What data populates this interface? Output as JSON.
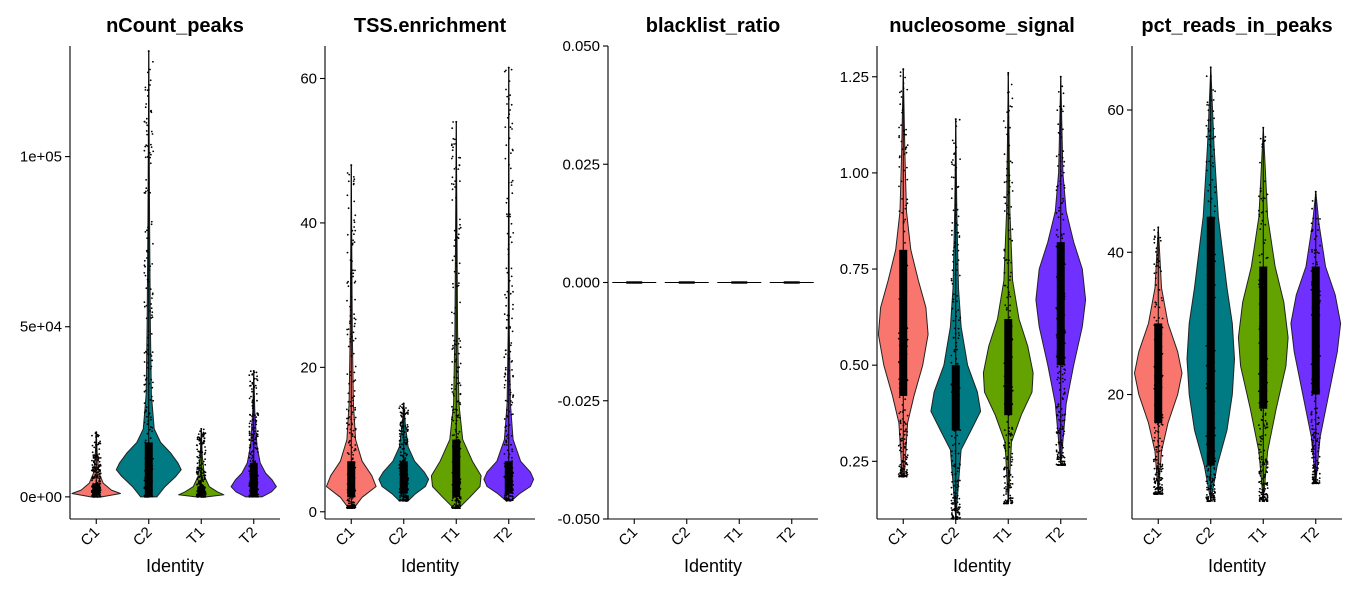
{
  "chart_data": [
    {
      "type": "violin",
      "title": "nCount_peaks",
      "xlabel": "Identity",
      "ylabel": "",
      "ylim": [
        -6500,
        132500
      ],
      "ticks": [
        {
          "value": 0,
          "label": "0e+00"
        },
        {
          "value": 50000,
          "label": "5e+04"
        },
        {
          "value": 100000,
          "label": "1e+05"
        }
      ],
      "categories": [
        "C1",
        "C2",
        "T1",
        "T2"
      ],
      "series": [
        {
          "category": "C1",
          "color": "#F8766D",
          "min": 0,
          "max": 19000,
          "profile": [
            [
              0,
              0.1
            ],
            [
              1000,
              0.45
            ],
            [
              2000,
              0.28
            ],
            [
              4000,
              0.13
            ],
            [
              7000,
              0.05
            ],
            [
              12000,
              0.02
            ],
            [
              19000,
              0
            ]
          ]
        },
        {
          "category": "C2",
          "color": "#007A83",
          "min": 0,
          "max": 131000,
          "profile": [
            [
              0,
              0.15
            ],
            [
              3000,
              0.3
            ],
            [
              6000,
              0.5
            ],
            [
              8000,
              0.6
            ],
            [
              10000,
              0.54
            ],
            [
              13000,
              0.4
            ],
            [
              16000,
              0.22
            ],
            [
              20000,
              0.1
            ],
            [
              30000,
              0.05
            ],
            [
              50000,
              0.03
            ],
            [
              80000,
              0.015
            ],
            [
              131000,
              0
            ]
          ]
        },
        {
          "category": "T1",
          "color": "#64A200",
          "min": 0,
          "max": 20000,
          "profile": [
            [
              0,
              0.1
            ],
            [
              600,
              0.42
            ],
            [
              1500,
              0.3
            ],
            [
              3000,
              0.15
            ],
            [
              6000,
              0.06
            ],
            [
              12000,
              0.02
            ],
            [
              20000,
              0
            ]
          ]
        },
        {
          "category": "T2",
          "color": "#7030FF",
          "min": 0,
          "max": 37000,
          "profile": [
            [
              0,
              0.15
            ],
            [
              1500,
              0.33
            ],
            [
              3000,
              0.42
            ],
            [
              5000,
              0.34
            ],
            [
              7000,
              0.22
            ],
            [
              10000,
              0.12
            ],
            [
              15000,
              0.06
            ],
            [
              25000,
              0.02
            ],
            [
              37000,
              0
            ]
          ]
        }
      ]
    },
    {
      "type": "violin",
      "title": "TSS.enrichment",
      "xlabel": "Identity",
      "ylabel": "",
      "ylim": [
        -1,
        64.5
      ],
      "ticks": [
        {
          "value": 0,
          "label": "0"
        },
        {
          "value": 20,
          "label": "20"
        },
        {
          "value": 40,
          "label": "40"
        },
        {
          "value": 60,
          "label": "60"
        }
      ],
      "categories": [
        "C1",
        "C2",
        "T1",
        "T2"
      ],
      "series": [
        {
          "category": "C1",
          "color": "#F8766D",
          "min": 0.5,
          "max": 48,
          "profile": [
            [
              0.5,
              0.05
            ],
            [
              2,
              0.2
            ],
            [
              3.5,
              0.46
            ],
            [
              5,
              0.38
            ],
            [
              7,
              0.2
            ],
            [
              10,
              0.08
            ],
            [
              15,
              0.04
            ],
            [
              25,
              0.02
            ],
            [
              48,
              0
            ]
          ]
        },
        {
          "category": "C2",
          "color": "#007A83",
          "min": 1.5,
          "max": 15,
          "profile": [
            [
              1.5,
              0.08
            ],
            [
              2.5,
              0.22
            ],
            [
              3.5,
              0.4
            ],
            [
              4.5,
              0.46
            ],
            [
              5.5,
              0.38
            ],
            [
              7,
              0.2
            ],
            [
              9,
              0.08
            ],
            [
              12,
              0.03
            ],
            [
              15,
              0
            ]
          ]
        },
        {
          "category": "T1",
          "color": "#64A200",
          "min": 0.5,
          "max": 54,
          "profile": [
            [
              0.5,
              0.05
            ],
            [
              2,
              0.25
            ],
            [
              3.5,
              0.44
            ],
            [
              5,
              0.46
            ],
            [
              7,
              0.3
            ],
            [
              10,
              0.12
            ],
            [
              15,
              0.05
            ],
            [
              25,
              0.025
            ],
            [
              54,
              0
            ]
          ]
        },
        {
          "category": "T2",
          "color": "#7030FF",
          "min": 1.5,
          "max": 61.5,
          "profile": [
            [
              1.5,
              0.05
            ],
            [
              2.5,
              0.2
            ],
            [
              3.5,
              0.4
            ],
            [
              4.5,
              0.46
            ],
            [
              5.5,
              0.4
            ],
            [
              7,
              0.22
            ],
            [
              10,
              0.08
            ],
            [
              15,
              0.03
            ],
            [
              25,
              0.01
            ],
            [
              61.5,
              0
            ]
          ]
        }
      ]
    },
    {
      "type": "violin",
      "title": "blacklist_ratio",
      "xlabel": "Identity",
      "ylabel": "",
      "ylim": [
        -0.05,
        0.05
      ],
      "ticks": [
        {
          "value": -0.05,
          "label": "-0.050"
        },
        {
          "value": -0.025,
          "label": "-0.025"
        },
        {
          "value": 0,
          "label": "0.000"
        },
        {
          "value": 0.025,
          "label": "0.025"
        },
        {
          "value": 0.05,
          "label": "0.050"
        }
      ],
      "categories": [
        "C1",
        "C2",
        "T1",
        "T2"
      ],
      "series": [
        {
          "category": "C1",
          "color": "#F8766D",
          "min": 0,
          "max": 0,
          "profile": []
        },
        {
          "category": "C2",
          "color": "#007A83",
          "min": 0,
          "max": 0,
          "profile": []
        },
        {
          "category": "T1",
          "color": "#64A200",
          "min": 0,
          "max": 0,
          "profile": []
        },
        {
          "category": "T2",
          "color": "#7030FF",
          "min": 0,
          "max": 0,
          "profile": []
        }
      ]
    },
    {
      "type": "violin",
      "title": "nucleosome_signal",
      "xlabel": "Identity",
      "ylabel": "",
      "ylim": [
        0.1,
        1.33
      ],
      "ticks": [
        {
          "value": 0.25,
          "label": "0.25"
        },
        {
          "value": 0.5,
          "label": "0.50"
        },
        {
          "value": 0.75,
          "label": "0.75"
        },
        {
          "value": 1.0,
          "label": "1.00"
        },
        {
          "value": 1.25,
          "label": "1.25"
        }
      ],
      "categories": [
        "C1",
        "C2",
        "T1",
        "T2"
      ],
      "series": [
        {
          "category": "C1",
          "color": "#F8766D",
          "min": 0.21,
          "max": 1.27,
          "profile": [
            [
              0.21,
              0.02
            ],
            [
              0.35,
              0.08
            ],
            [
              0.42,
              0.2
            ],
            [
              0.5,
              0.36
            ],
            [
              0.58,
              0.46
            ],
            [
              0.65,
              0.42
            ],
            [
              0.72,
              0.28
            ],
            [
              0.8,
              0.14
            ],
            [
              0.9,
              0.06
            ],
            [
              1.05,
              0.03
            ],
            [
              1.27,
              0
            ]
          ]
        },
        {
          "category": "C2",
          "color": "#007A83",
          "min": 0.1,
          "max": 1.14,
          "profile": [
            [
              0.1,
              0.0
            ],
            [
              0.28,
              0.1
            ],
            [
              0.33,
              0.28
            ],
            [
              0.38,
              0.46
            ],
            [
              0.43,
              0.4
            ],
            [
              0.5,
              0.22
            ],
            [
              0.6,
              0.1
            ],
            [
              0.7,
              0.05
            ],
            [
              0.9,
              0.02
            ],
            [
              1.14,
              0
            ]
          ]
        },
        {
          "category": "T1",
          "color": "#64A200",
          "min": 0.14,
          "max": 1.26,
          "profile": [
            [
              0.14,
              0.0
            ],
            [
              0.3,
              0.06
            ],
            [
              0.37,
              0.24
            ],
            [
              0.43,
              0.44
            ],
            [
              0.48,
              0.46
            ],
            [
              0.55,
              0.36
            ],
            [
              0.62,
              0.2
            ],
            [
              0.72,
              0.08
            ],
            [
              0.9,
              0.03
            ],
            [
              1.26,
              0
            ]
          ]
        },
        {
          "category": "T2",
          "color": "#7030FF",
          "min": 0.24,
          "max": 1.25,
          "profile": [
            [
              0.24,
              0.0
            ],
            [
              0.4,
              0.1
            ],
            [
              0.5,
              0.24
            ],
            [
              0.6,
              0.4
            ],
            [
              0.67,
              0.46
            ],
            [
              0.75,
              0.4
            ],
            [
              0.82,
              0.24
            ],
            [
              0.9,
              0.1
            ],
            [
              1.0,
              0.04
            ],
            [
              1.25,
              0
            ]
          ]
        }
      ]
    },
    {
      "type": "violin",
      "title": "pct_reads_in_peaks",
      "xlabel": "Identity",
      "ylabel": "",
      "ylim": [
        2.5,
        69
      ],
      "ticks": [
        {
          "value": 20,
          "label": "20"
        },
        {
          "value": 40,
          "label": "40"
        },
        {
          "value": 60,
          "label": "60"
        }
      ],
      "categories": [
        "C1",
        "C2",
        "T1",
        "T2"
      ],
      "series": [
        {
          "category": "C1",
          "color": "#F8766D",
          "min": 6,
          "max": 43.5,
          "profile": [
            [
              6,
              0.0
            ],
            [
              12,
              0.06
            ],
            [
              16,
              0.18
            ],
            [
              20,
              0.36
            ],
            [
              23,
              0.44
            ],
            [
              26,
              0.36
            ],
            [
              30,
              0.18
            ],
            [
              35,
              0.06
            ],
            [
              43.5,
              0
            ]
          ]
        },
        {
          "category": "C2",
          "color": "#007A83",
          "min": 5,
          "max": 66,
          "profile": [
            [
              5,
              0.0
            ],
            [
              10,
              0.12
            ],
            [
              15,
              0.3
            ],
            [
              20,
              0.4
            ],
            [
              25,
              0.44
            ],
            [
              30,
              0.4
            ],
            [
              35,
              0.3
            ],
            [
              45,
              0.14
            ],
            [
              55,
              0.06
            ],
            [
              66,
              0
            ]
          ]
        },
        {
          "category": "T1",
          "color": "#64A200",
          "min": 5,
          "max": 57.5,
          "profile": [
            [
              5,
              0.0
            ],
            [
              12,
              0.08
            ],
            [
              18,
              0.24
            ],
            [
              24,
              0.42
            ],
            [
              28,
              0.46
            ],
            [
              33,
              0.38
            ],
            [
              38,
              0.22
            ],
            [
              45,
              0.08
            ],
            [
              57.5,
              0
            ]
          ]
        },
        {
          "category": "T2",
          "color": "#7030FF",
          "min": 7.5,
          "max": 48.5,
          "profile": [
            [
              7.5,
              0.0
            ],
            [
              14,
              0.08
            ],
            [
              20,
              0.24
            ],
            [
              26,
              0.4
            ],
            [
              30,
              0.46
            ],
            [
              34,
              0.36
            ],
            [
              38,
              0.18
            ],
            [
              44,
              0.06
            ],
            [
              48.5,
              0
            ]
          ]
        }
      ]
    }
  ]
}
